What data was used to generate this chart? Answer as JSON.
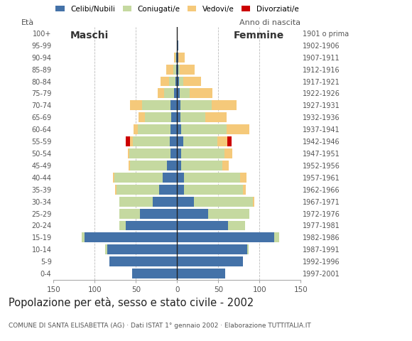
{
  "age_groups": [
    "0-4",
    "5-9",
    "10-14",
    "15-19",
    "20-24",
    "25-29",
    "30-34",
    "35-39",
    "40-44",
    "45-49",
    "50-54",
    "55-59",
    "60-64",
    "65-69",
    "70-74",
    "75-79",
    "80-84",
    "85-89",
    "90-94",
    "95-99",
    "100+"
  ],
  "birth_years": [
    "1997-2001",
    "1992-1996",
    "1987-1991",
    "1982-1986",
    "1977-1981",
    "1972-1976",
    "1967-1971",
    "1962-1966",
    "1957-1961",
    "1952-1956",
    "1947-1951",
    "1942-1946",
    "1937-1941",
    "1932-1936",
    "1927-1931",
    "1922-1926",
    "1917-1921",
    "1912-1916",
    "1907-1911",
    "1902-1906",
    "1901 o prima"
  ],
  "males_celibe": [
    55,
    82,
    85,
    112,
    62,
    45,
    30,
    22,
    18,
    12,
    8,
    9,
    8,
    7,
    8,
    4,
    2,
    1,
    1,
    0,
    0
  ],
  "males_coniugato": [
    0,
    0,
    2,
    4,
    8,
    25,
    40,
    52,
    58,
    45,
    50,
    45,
    40,
    32,
    35,
    12,
    8,
    4,
    1,
    0,
    0
  ],
  "males_vedovo": [
    0,
    0,
    0,
    0,
    0,
    0,
    0,
    1,
    2,
    2,
    2,
    3,
    5,
    8,
    14,
    8,
    10,
    8,
    2,
    0,
    0
  ],
  "males_divorziato": [
    0,
    0,
    0,
    0,
    0,
    0,
    0,
    0,
    0,
    0,
    0,
    5,
    0,
    0,
    0,
    0,
    0,
    0,
    0,
    0,
    0
  ],
  "females_nubile": [
    58,
    80,
    85,
    118,
    62,
    38,
    20,
    8,
    8,
    5,
    5,
    7,
    5,
    4,
    4,
    3,
    2,
    1,
    1,
    1,
    0
  ],
  "females_coniugata": [
    0,
    0,
    2,
    6,
    20,
    50,
    72,
    72,
    68,
    50,
    52,
    42,
    55,
    30,
    38,
    12,
    5,
    2,
    0,
    0,
    0
  ],
  "females_vedova": [
    0,
    0,
    0,
    0,
    0,
    0,
    2,
    3,
    8,
    8,
    10,
    12,
    28,
    26,
    30,
    28,
    22,
    18,
    8,
    0,
    0
  ],
  "females_divorziata": [
    0,
    0,
    0,
    0,
    0,
    0,
    0,
    0,
    0,
    0,
    0,
    5,
    0,
    0,
    0,
    0,
    0,
    0,
    0,
    0,
    0
  ],
  "colors": {
    "celibe_nubile": "#4472a8",
    "coniugato_coniugata": "#c5d9a0",
    "vedovo_vedova": "#f5c97a",
    "divorziato_divorziata": "#cc0000"
  },
  "title": "Popolazione per età, sesso e stato civile - 2002",
  "subtitle": "COMUNE DI SANTA ELISABETTA (AG) · Dati ISTAT 1° gennaio 2002 · Elaborazione TUTTITALIA.IT",
  "xlabel_left": "Maschi",
  "xlabel_right": "Femmine",
  "ylabel_left": "Età",
  "ylabel_right": "Anno di nascita",
  "xlim": 150,
  "legend_labels": [
    "Celibi/Nubili",
    "Coniugati/e",
    "Vedovi/e",
    "Divorziati/e"
  ],
  "background_color": "#ffffff",
  "grid_color": "#bbbbbb"
}
